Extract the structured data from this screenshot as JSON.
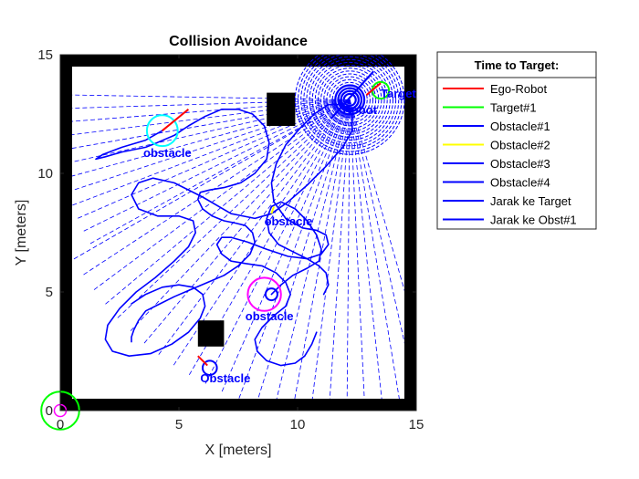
{
  "chart_data": {
    "type": "line",
    "title": "Collision Avoidance",
    "xlabel": "X [meters]",
    "ylabel": "Y [meters]",
    "xlim": [
      0,
      15
    ],
    "ylim": [
      0,
      15
    ],
    "xticks": [
      "0",
      "5",
      "10",
      "15"
    ],
    "yticks": [
      "0",
      "5",
      "10",
      "15"
    ],
    "grid": false,
    "legend": {
      "title": "Time to Target:",
      "placement": "outside-right-top",
      "entries": [
        {
          "label": "Ego-Robot",
          "color": "#ff0000"
        },
        {
          "label": "Target#1",
          "color": "#00ff00"
        },
        {
          "label": "Obstacle#1",
          "color": "#0000ff"
        },
        {
          "label": "Obstacle#2",
          "color": "#ffff00"
        },
        {
          "label": "Obstacle#3",
          "color": "#0000ff"
        },
        {
          "label": "Obstacle#4",
          "color": "#0000ff"
        },
        {
          "label": "Jarak ke Target",
          "color": "#0000ff"
        },
        {
          "label": "Jarak ke Obst#1",
          "color": "#0000ff"
        }
      ]
    },
    "walls": {
      "outer": [
        [
          0,
          0
        ],
        [
          15,
          15
        ]
      ],
      "thickness": 0.5,
      "blocks": [
        {
          "x": [
            8.7,
            9.9
          ],
          "y": [
            12.0,
            13.4
          ]
        },
        {
          "x": [
            5.8,
            6.9
          ],
          "y": [
            2.7,
            3.8
          ]
        }
      ]
    },
    "annotations": [
      {
        "text": "Target",
        "x": 13.5,
        "y": 13.2,
        "color": "#0000ff"
      },
      {
        "text": "Robot",
        "x": 11.9,
        "y": 12.5,
        "color": "#0000ff"
      },
      {
        "text": "obstacle",
        "x": 3.5,
        "y": 10.7,
        "color": "#0000ff"
      },
      {
        "text": "obstacle",
        "x": 8.6,
        "y": 7.8,
        "color": "#0000ff"
      },
      {
        "text": "obstacle",
        "x": 7.8,
        "y": 3.8,
        "color": "#0000ff"
      },
      {
        "text": "Obstacle",
        "x": 5.9,
        "y": 1.2,
        "color": "#0000ff"
      }
    ],
    "circles": [
      {
        "name": "obstacle-circle-cyan",
        "x": 4.3,
        "y": 11.8,
        "r": 0.65,
        "color": "#00ffff",
        "width": 2
      },
      {
        "name": "obstacle-circle-magenta",
        "x": 8.6,
        "y": 4.9,
        "r": 0.7,
        "color": "#ff00ff",
        "width": 2
      },
      {
        "name": "obstacle-circle-small",
        "x": 6.3,
        "y": 1.8,
        "r": 0.3,
        "color": "#0000ff",
        "width": 2
      },
      {
        "name": "target-circle-top",
        "x": 13.5,
        "y": 13.5,
        "r": 0.35,
        "color": "#00ff00",
        "width": 2
      },
      {
        "name": "start-circle-large",
        "x": 0.0,
        "y": 0.0,
        "r": 0.8,
        "color": "#00ff00",
        "width": 2
      },
      {
        "name": "start-circle-small",
        "x": 0.0,
        "y": 0.0,
        "r": 0.25,
        "color": "#ff00ff",
        "width": 1.5
      },
      {
        "name": "obstacle-circle-inner",
        "x": 8.9,
        "y": 4.9,
        "r": 0.25,
        "color": "#0000ff",
        "width": 2
      }
    ],
    "sensor_ring": {
      "center": [
        12.2,
        13.1
      ],
      "inner_radius": 0.25,
      "outer_radius": 2.3,
      "rings": 18,
      "color": "#0000ff"
    },
    "rays": {
      "origin": [
        12.2,
        13.1
      ],
      "color": "#0000ff",
      "fans": [
        {
          "angle_start": 179,
          "angle_end": 209,
          "count": 12,
          "length": 12.5
        },
        {
          "angle_start": 210,
          "angle_end": 286,
          "count": 24,
          "length": 13.5
        }
      ]
    },
    "robot_heading": [
      [
        11.4,
        12.3
      ],
      [
        13.2,
        14.3
      ]
    ],
    "heading_markers": [
      {
        "from": [
          4.3,
          11.8
        ],
        "to": [
          5.4,
          12.7
        ],
        "color": "#ff0000"
      },
      {
        "from": [
          6.2,
          1.9
        ],
        "to": [
          5.8,
          2.3
        ],
        "color": "#ff0000"
      },
      {
        "from": [
          12.9,
          13.3
        ],
        "to": [
          13.5,
          13.8
        ],
        "color": "#ff0000"
      },
      {
        "from": [
          8.9,
          8.3
        ],
        "to": [
          9.0,
          8.6
        ],
        "color": "#ffff00"
      }
    ],
    "series": [
      {
        "name": "Obstacle#1",
        "color": "#0000ff",
        "x": [
          4.3,
          3.6,
          2.6,
          1.8,
          1.5,
          1.9,
          2.6,
          3.1,
          3.6,
          4.1,
          4.8,
          5.4,
          6.1,
          6.8,
          7.5,
          8.1,
          8.6,
          8.8,
          8.7,
          8.2,
          7.6,
          6.9,
          6.3,
          5.9,
          5.8,
          6.0,
          6.4,
          6.9,
          7.4,
          7.8,
          8.1,
          8.2,
          8.0,
          7.5,
          6.9,
          6.2,
          5.5,
          4.8,
          4.2,
          3.6,
          3.3,
          3.1,
          3.0,
          3.0
        ],
        "y": [
          11.8,
          11.4,
          11.1,
          10.8,
          10.6,
          10.7,
          10.9,
          11.0,
          11.1,
          11.3,
          11.6,
          12.0,
          12.4,
          12.7,
          12.7,
          12.5,
          12.0,
          11.3,
          10.6,
          10.0,
          9.6,
          9.4,
          9.3,
          9.2,
          8.9,
          8.5,
          8.2,
          8.0,
          7.9,
          7.8,
          7.5,
          7.1,
          6.6,
          6.1,
          5.7,
          5.4,
          5.1,
          4.8,
          4.5,
          4.2,
          3.8,
          3.4,
          3.1,
          2.9
        ]
      },
      {
        "name": "Obstacle#2",
        "color": "#0000ff",
        "x": [
          8.9,
          8.2,
          7.2,
          6.0,
          4.8,
          3.9,
          3.3,
          3.0,
          3.3,
          4.1,
          5.0,
          5.6,
          5.7,
          5.4,
          4.8,
          4.0,
          3.2,
          2.5,
          2.0,
          1.9,
          2.2,
          2.9,
          3.8,
          4.7,
          5.4,
          5.9,
          6.1,
          6.0,
          5.6,
          5.0,
          4.3,
          3.6,
          3.0
        ],
        "y": [
          8.3,
          8.1,
          8.3,
          9.0,
          9.6,
          9.8,
          9.6,
          9.1,
          8.5,
          8.2,
          8.2,
          8.0,
          7.5,
          6.9,
          6.3,
          5.6,
          5.0,
          4.3,
          3.6,
          3.0,
          2.5,
          2.3,
          2.4,
          2.8,
          3.3,
          3.9,
          4.4,
          4.9,
          5.2,
          5.3,
          5.2,
          4.9,
          4.5
        ]
      },
      {
        "name": "Obstacle#3",
        "color": "#0000ff",
        "x": [
          8.9,
          9.6,
          10.4,
          11.2,
          11.9,
          12.3,
          12.3,
          11.9,
          11.3,
          10.7,
          10.1,
          9.5,
          9.1,
          8.9,
          9.0,
          9.5,
          10.2,
          10.8,
          11.2,
          11.3,
          11.0,
          10.4,
          9.6,
          8.7,
          7.9,
          7.2,
          6.8,
          6.6,
          6.8,
          7.2,
          7.8,
          8.5,
          9.1,
          9.5,
          9.7,
          9.5,
          9.0,
          8.5,
          8.2,
          8.3,
          8.7,
          9.3,
          9.9,
          10.3,
          10.6,
          10.8
        ],
        "y": [
          8.3,
          8.8,
          9.5,
          10.3,
          11.1,
          11.8,
          12.5,
          12.9,
          12.9,
          12.5,
          11.9,
          11.2,
          10.4,
          9.6,
          8.8,
          8.1,
          7.7,
          7.6,
          7.4,
          7.0,
          6.6,
          6.4,
          6.5,
          6.8,
          7.1,
          7.3,
          7.3,
          7.0,
          6.6,
          6.3,
          6.2,
          6.1,
          5.8,
          5.4,
          4.9,
          4.4,
          4.0,
          3.5,
          3.0,
          2.5,
          2.1,
          1.9,
          2.0,
          2.3,
          2.8,
          3.3
        ]
      },
      {
        "name": "Obstacle#4",
        "color": "#0000ff",
        "x": [
          8.9,
          9.3,
          9.8,
          10.4,
          10.9,
          11.0,
          10.8,
          10.4,
          9.9,
          9.3,
          8.9,
          8.7,
          8.8,
          9.2,
          9.8,
          10.4,
          10.9,
          11.2,
          11.3,
          11.1
        ],
        "y": [
          4.9,
          5.3,
          5.7,
          6.0,
          6.3,
          6.8,
          7.4,
          8.0,
          8.5,
          8.8,
          8.6,
          8.1,
          7.5,
          7.0,
          6.7,
          6.4,
          6.1,
          5.8,
          5.3,
          4.9
        ]
      }
    ]
  }
}
